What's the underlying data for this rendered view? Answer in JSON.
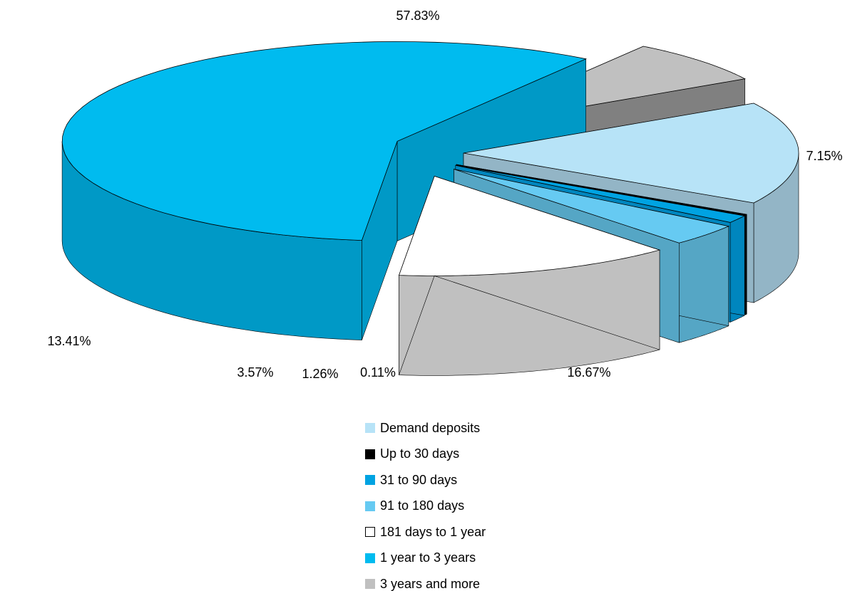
{
  "chart_data": {
    "type": "pie",
    "title": "",
    "series": [
      {
        "slices": [
          {
            "label": "Demand deposits",
            "value": 16.67,
            "display": "16.67%",
            "color": "#B7E3F7",
            "side_color": "#93B5C6"
          },
          {
            "label": "Up to 30 days",
            "value": 0.11,
            "display": "0.11%",
            "color": "#000000",
            "side_color": "#000000"
          },
          {
            "label": "31 to 90 days",
            "value": 1.26,
            "display": "1.26%",
            "color": "#00A3E2",
            "side_color": "#0086BE"
          },
          {
            "label": "91 to 180 days",
            "value": 3.57,
            "display": "3.57%",
            "color": "#66CAF2",
            "side_color": "#55A6C5"
          },
          {
            "label": "181 days to 1 year",
            "value": 13.41,
            "display": "13.41%",
            "color": "#FFFFFF",
            "side_color": "#C0C0C0"
          },
          {
            "label": "1 year to 3 years",
            "value": 57.83,
            "display": "57.83%",
            "color": "#00BBEF",
            "side_color": "#0099C6"
          },
          {
            "label": "3 years and more",
            "value": 7.15,
            "display": "7.15%",
            "color": "#C0C0C0",
            "side_color": "#808080"
          }
        ]
      }
    ],
    "legend_position": "bottom-center",
    "style": "3d-exploded-pie"
  }
}
